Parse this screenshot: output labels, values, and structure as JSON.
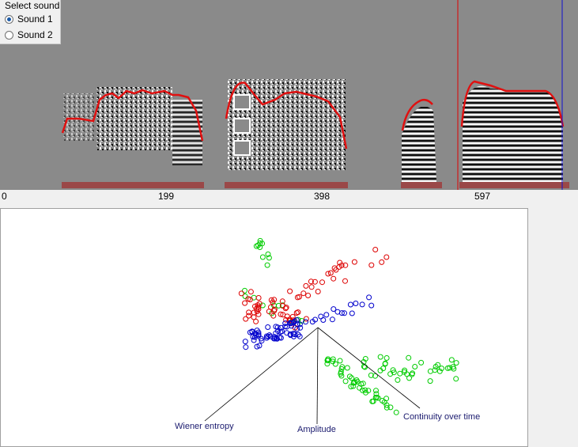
{
  "sound_selector": {
    "title": "Select sound",
    "options": [
      "Sound 1",
      "Sound 2"
    ],
    "selected": "Sound 1"
  },
  "time_axis": {
    "ticks": [
      "0",
      "199",
      "398",
      "597"
    ]
  },
  "feature_space": {
    "axes": [
      {
        "label": "Wiener entropy"
      },
      {
        "label": "Amplitude"
      },
      {
        "label": "Continuity over time"
      }
    ]
  },
  "colors": {
    "pitch_trace": "#e01010",
    "segment_bar": "#9a4848",
    "cursor_red": "#e00000",
    "cursor_blue": "#1010d0",
    "cluster_green": "#00cc00",
    "cluster_red": "#dd0000",
    "cluster_blue": "#0000cc",
    "axis_label": "#1a1a6e"
  }
}
